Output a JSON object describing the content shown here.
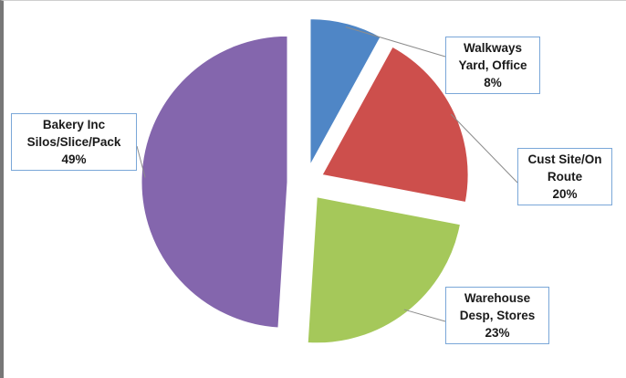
{
  "chart_data": {
    "type": "pie",
    "exploded": true,
    "title": "",
    "slices": [
      {
        "label_line1": "Walkways",
        "label_line2": "Yard, Office",
        "value": 8,
        "value_label": "8%",
        "color": "#4f86c6"
      },
      {
        "label_line1": "Cust Site/On",
        "label_line2": "Route",
        "value": 20,
        "value_label": "20%",
        "color": "#cd4f4c"
      },
      {
        "label_line1": "Warehouse",
        "label_line2": "Desp, Stores",
        "value": 23,
        "value_label": "23%",
        "color": "#a5c85a"
      },
      {
        "label_line1": "Bakery Inc",
        "label_line2": "Silos/Slice/Pack",
        "value": 49,
        "value_label": "49%",
        "color": "#8466ad"
      }
    ]
  }
}
